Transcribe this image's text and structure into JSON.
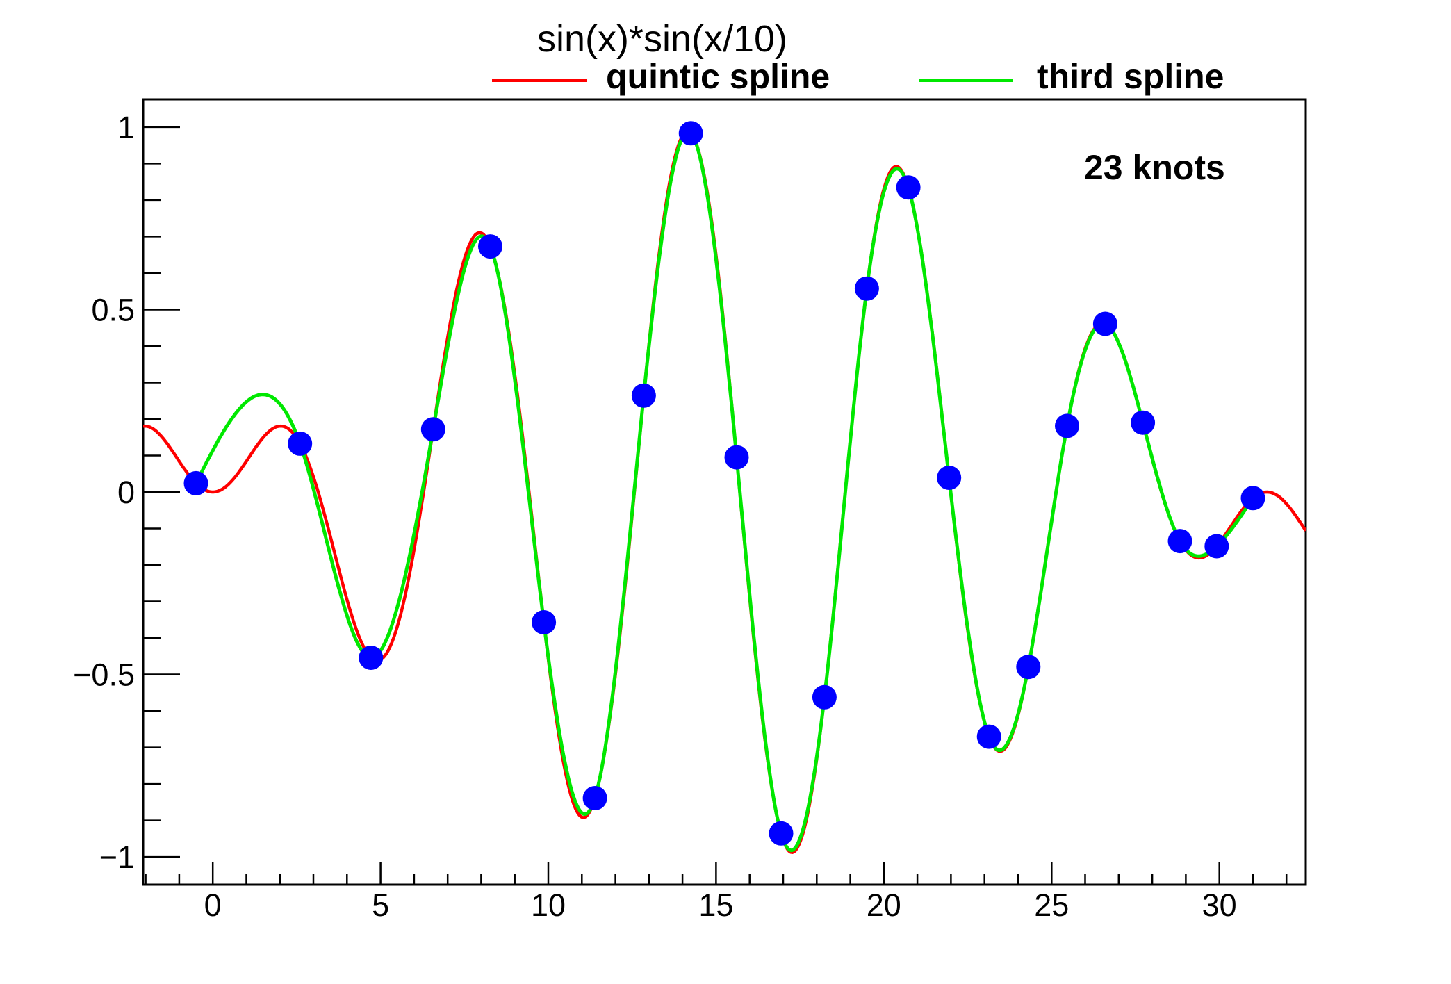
{
  "title": "sin(x)*sin(x/10)",
  "annotation": "23 knots",
  "legend": [
    {
      "label": "quintic spline",
      "color": "#ff0000"
    },
    {
      "label": "third spline",
      "color": "#00e800"
    }
  ],
  "colors": {
    "background": "#ffffff",
    "axis": "#000000",
    "quintic_spline": "#ff0000",
    "third_spline": "#00e800",
    "knot_marker": "#0000ff"
  },
  "chart_data": {
    "type": "line",
    "title": "sin(x)*sin(x/10)",
    "xlabel": "",
    "ylabel": "",
    "grid": false,
    "legend_position": "top",
    "x_axis": {
      "range": [
        -2.075,
        32.575
      ],
      "major_ticks": [
        0,
        5,
        10,
        15,
        20,
        25,
        30
      ],
      "major_labels": [
        "0",
        "5",
        "10",
        "15",
        "20",
        "25",
        "30"
      ],
      "minor_step": 1
    },
    "y_axis": {
      "range": [
        -1.076,
        1.076
      ],
      "major_ticks": [
        -1,
        -0.5,
        0,
        0.5,
        1
      ],
      "major_labels": [
        "−1",
        "−0.5",
        "0",
        "0.5",
        "1"
      ],
      "minor_step": 0.1
    },
    "series": [
      {
        "name": "quintic spline",
        "type": "function-curve",
        "formula": "sin(x)*sin(x/10)",
        "color": "#ff0000",
        "line_width": 4.5,
        "x_range": [
          -2.075,
          32.575
        ]
      },
      {
        "name": "third spline",
        "type": "cubic-spline-through-knots",
        "color": "#00e800",
        "line_width": 5,
        "x_range": [
          -0.5,
          31
        ]
      },
      {
        "name": "knots",
        "type": "scatter",
        "marker": "filled-circle",
        "marker_color": "#0000ff",
        "marker_radius": 17.5,
        "points": [
          [
            -0.5,
            0.024
          ],
          [
            2.5994,
            0.1326
          ],
          [
            4.7151,
            -0.4542
          ],
          [
            6.5683,
            0.1717
          ],
          [
            8.2701,
            0.6731
          ],
          [
            9.867,
            -0.357
          ],
          [
            11.3886,
            -0.8389
          ],
          [
            12.8454,
            0.2642
          ],
          [
            14.2505,
            0.983
          ],
          [
            15.6127,
            0.0951
          ],
          [
            16.9386,
            -0.9356
          ],
          [
            18.23,
            -0.5624
          ],
          [
            19.4933,
            0.5577
          ],
          [
            20.7303,
            0.8347
          ],
          [
            21.9431,
            0.039
          ],
          [
            23.1352,
            -0.6706
          ],
          [
            24.3076,
            -0.4793
          ],
          [
            25.4615,
            0.1811
          ],
          [
            26.5987,
            0.4608
          ],
          [
            27.7201,
            0.1901
          ],
          [
            28.8269,
            -0.1344
          ],
          [
            29.9199,
            -0.1486
          ],
          [
            31.0,
            -0.0168
          ]
        ]
      }
    ],
    "annotation": {
      "text": "23 knots",
      "x": 25.6,
      "y": 0.92
    }
  }
}
